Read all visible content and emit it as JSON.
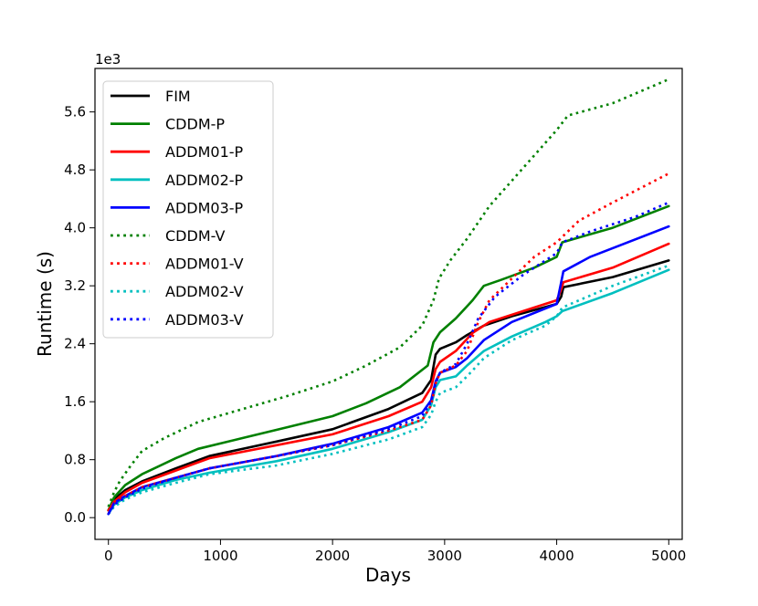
{
  "chart_data": {
    "type": "line",
    "title": "",
    "xlabel": "Days",
    "ylabel": "Runtime  (s)",
    "y_offset_label": "1e3",
    "xlim": [
      -120,
      5120
    ],
    "ylim": [
      -0.3,
      6.2
    ],
    "xticks": [
      0,
      1000,
      2000,
      3000,
      4000,
      5000
    ],
    "xtick_labels": [
      "0",
      "1000",
      "2000",
      "3000",
      "4000",
      "5000"
    ],
    "yticks": [
      0.0,
      0.8,
      1.6,
      2.4,
      3.2,
      4.0,
      4.8,
      5.6
    ],
    "ytick_labels": [
      "0.0",
      "0.8",
      "1.6",
      "2.4",
      "3.2",
      "4.0",
      "4.8",
      "5.6"
    ],
    "grid": false,
    "legend_position": "top-left",
    "series": [
      {
        "name": "FIM",
        "color": "#000000",
        "dash": "solid",
        "x": [
          0,
          50,
          150,
          300,
          600,
          900,
          1500,
          2000,
          2500,
          2800,
          2880,
          2920,
          2960,
          3100,
          3200,
          3350,
          3600,
          4000,
          4040,
          4060,
          4500,
          5000
        ],
        "y": [
          0.1,
          0.25,
          0.38,
          0.5,
          0.68,
          0.85,
          1.05,
          1.22,
          1.5,
          1.72,
          1.9,
          2.25,
          2.33,
          2.42,
          2.52,
          2.65,
          2.78,
          2.95,
          3.05,
          3.18,
          3.32,
          3.55
        ]
      },
      {
        "name": "CDDM-P",
        "color": "#008000",
        "dash": "solid",
        "x": [
          0,
          50,
          150,
          300,
          600,
          800,
          1200,
          1600,
          2000,
          2300,
          2600,
          2850,
          2900,
          2960,
          3100,
          3250,
          3350,
          3500,
          3800,
          4000,
          4050,
          4500,
          5000
        ],
        "y": [
          0.1,
          0.28,
          0.45,
          0.6,
          0.82,
          0.95,
          1.1,
          1.25,
          1.4,
          1.58,
          1.8,
          2.1,
          2.42,
          2.56,
          2.75,
          3.0,
          3.2,
          3.28,
          3.45,
          3.6,
          3.8,
          4.0,
          4.3
        ]
      },
      {
        "name": "ADDM01-P",
        "color": "#ff0000",
        "dash": "solid",
        "x": [
          0,
          50,
          150,
          300,
          600,
          900,
          1500,
          2000,
          2500,
          2800,
          2880,
          2920,
          2960,
          3100,
          3250,
          3400,
          3700,
          4000,
          4040,
          4060,
          4500,
          5000
        ],
        "y": [
          0.1,
          0.22,
          0.35,
          0.48,
          0.65,
          0.82,
          1.0,
          1.15,
          1.4,
          1.6,
          1.8,
          2.05,
          2.15,
          2.3,
          2.55,
          2.7,
          2.85,
          3.0,
          3.15,
          3.25,
          3.45,
          3.78
        ]
      },
      {
        "name": "ADDM02-P",
        "color": "#00bfbf",
        "dash": "solid",
        "x": [
          0,
          50,
          150,
          300,
          600,
          900,
          1500,
          2000,
          2500,
          2800,
          2880,
          2920,
          2960,
          3100,
          3200,
          3350,
          3600,
          3900,
          4000,
          4050,
          4500,
          5000
        ],
        "y": [
          0.05,
          0.18,
          0.28,
          0.38,
          0.52,
          0.62,
          0.78,
          0.95,
          1.18,
          1.35,
          1.55,
          1.8,
          1.9,
          1.95,
          2.1,
          2.3,
          2.5,
          2.7,
          2.78,
          2.85,
          3.1,
          3.42
        ]
      },
      {
        "name": "ADDM03-P",
        "color": "#0000ff",
        "dash": "solid",
        "x": [
          0,
          50,
          150,
          300,
          600,
          900,
          1500,
          2000,
          2500,
          2800,
          2880,
          2920,
          2960,
          3100,
          3200,
          3350,
          3600,
          4000,
          4040,
          4060,
          4300,
          5000
        ],
        "y": [
          0.05,
          0.2,
          0.3,
          0.42,
          0.55,
          0.68,
          0.85,
          1.02,
          1.25,
          1.45,
          1.62,
          1.88,
          2.0,
          2.08,
          2.2,
          2.45,
          2.7,
          2.95,
          3.25,
          3.4,
          3.6,
          4.02
        ]
      },
      {
        "name": "CDDM-V",
        "color": "#008000",
        "dash": "dotted",
        "x": [
          0,
          50,
          100,
          200,
          300,
          500,
          800,
          1200,
          1600,
          2000,
          2300,
          2600,
          2800,
          2900,
          2950,
          3050,
          3200,
          3400,
          3600,
          3800,
          4000,
          4100,
          4500,
          5000
        ],
        "y": [
          0.15,
          0.35,
          0.5,
          0.72,
          0.92,
          1.1,
          1.32,
          1.5,
          1.68,
          1.88,
          2.1,
          2.35,
          2.65,
          3.0,
          3.3,
          3.55,
          3.85,
          4.3,
          4.65,
          5.0,
          5.35,
          5.55,
          5.72,
          6.05
        ]
      },
      {
        "name": "ADDM01-V",
        "color": "#ff0000",
        "dash": "dotted",
        "x": [
          0,
          50,
          150,
          300,
          600,
          900,
          1500,
          2000,
          2500,
          2800,
          2880,
          2920,
          2960,
          3100,
          3200,
          3300,
          3400,
          3600,
          3800,
          4000,
          4200,
          4500,
          5000
        ],
        "y": [
          0.05,
          0.2,
          0.3,
          0.42,
          0.55,
          0.68,
          0.85,
          1.0,
          1.2,
          1.35,
          1.55,
          1.85,
          2.0,
          2.1,
          2.3,
          2.7,
          3.0,
          3.3,
          3.6,
          3.8,
          4.1,
          4.35,
          4.75
        ]
      },
      {
        "name": "ADDM02-V",
        "color": "#00bfbf",
        "dash": "dotted",
        "x": [
          0,
          50,
          150,
          300,
          600,
          900,
          1500,
          2000,
          2500,
          2800,
          2880,
          2920,
          2960,
          3100,
          3200,
          3350,
          3600,
          3900,
          4000,
          4050,
          4500,
          5000
        ],
        "y": [
          0.05,
          0.15,
          0.25,
          0.35,
          0.48,
          0.6,
          0.72,
          0.88,
          1.08,
          1.25,
          1.42,
          1.6,
          1.72,
          1.8,
          1.95,
          2.2,
          2.45,
          2.65,
          2.78,
          2.9,
          3.2,
          3.48
        ]
      },
      {
        "name": "ADDM03-V",
        "color": "#0000ff",
        "dash": "dotted",
        "x": [
          0,
          50,
          150,
          300,
          600,
          900,
          1500,
          2000,
          2500,
          2800,
          2880,
          2920,
          2960,
          3100,
          3200,
          3300,
          3450,
          3700,
          4000,
          4050,
          4300,
          4700,
          5000
        ],
        "y": [
          0.05,
          0.18,
          0.28,
          0.4,
          0.55,
          0.68,
          0.85,
          1.0,
          1.22,
          1.4,
          1.6,
          1.85,
          2.0,
          2.12,
          2.4,
          2.75,
          3.05,
          3.35,
          3.65,
          3.8,
          3.95,
          4.15,
          4.35
        ]
      }
    ]
  }
}
